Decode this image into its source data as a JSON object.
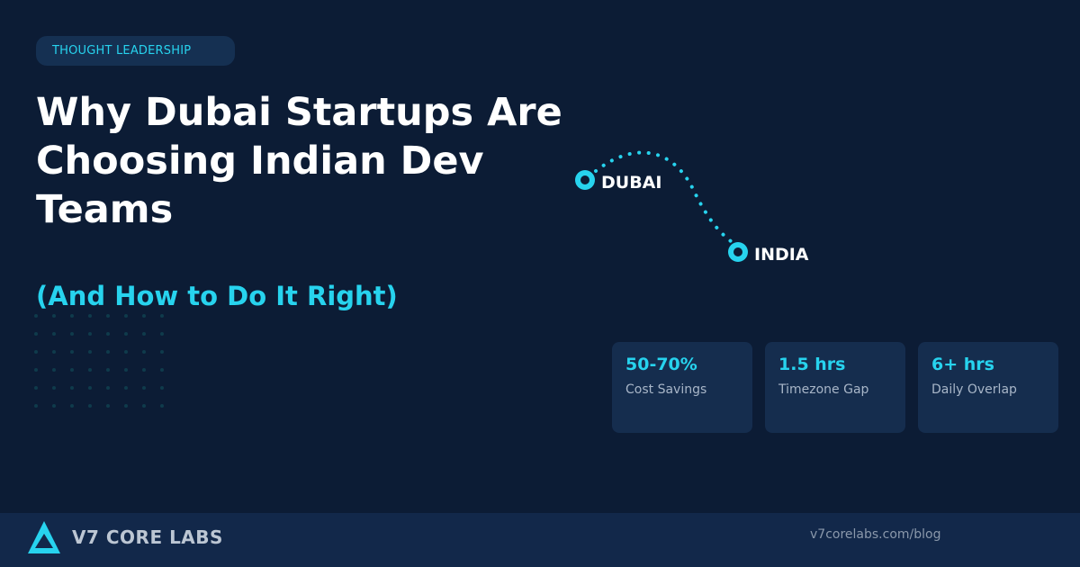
{
  "badge": {
    "label": "THOUGHT LEADERSHIP"
  },
  "headline": {
    "lines": [
      "Why Dubai Startups Are",
      "Choosing Indian Dev",
      "Teams"
    ],
    "subtitle": "(And How to Do It Right)"
  },
  "route_map": {
    "origin": "DUBAI",
    "destination": "INDIA"
  },
  "stats": [
    {
      "value": "50-70%",
      "label": "Cost Savings"
    },
    {
      "value": "1.5 hrs",
      "label": "Timezone Gap"
    },
    {
      "value": "6+ hrs",
      "label": "Daily Overlap"
    }
  ],
  "footer": {
    "brand": "V7 CORE LABS",
    "url": "v7corelabs.com/blog",
    "logo_icon": "triangle-logo-icon"
  },
  "colors": {
    "background": "#0c1c35",
    "accent": "#27d3ee",
    "card": "#152d4e",
    "footer": "#12284a"
  }
}
